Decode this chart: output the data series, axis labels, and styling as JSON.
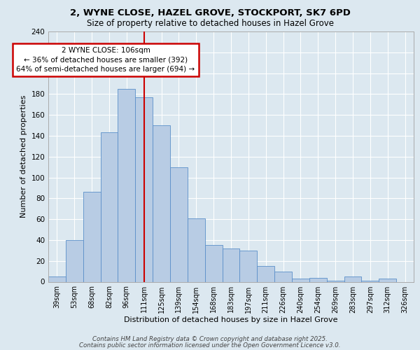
{
  "title_line1": "2, WYNE CLOSE, HAZEL GROVE, STOCKPORT, SK7 6PD",
  "title_line2": "Size of property relative to detached houses in Hazel Grove",
  "xlabel": "Distribution of detached houses by size in Hazel Grove",
  "ylabel": "Number of detached properties",
  "categories": [
    "39sqm",
    "53sqm",
    "68sqm",
    "82sqm",
    "96sqm",
    "111sqm",
    "125sqm",
    "139sqm",
    "154sqm",
    "168sqm",
    "183sqm",
    "197sqm",
    "211sqm",
    "226sqm",
    "240sqm",
    "254sqm",
    "269sqm",
    "283sqm",
    "297sqm",
    "312sqm",
    "326sqm"
  ],
  "values": [
    5,
    40,
    86,
    143,
    185,
    177,
    150,
    110,
    61,
    35,
    32,
    30,
    15,
    10,
    3,
    4,
    1,
    5,
    1,
    3,
    0
  ],
  "bar_color": "#b8cce4",
  "bar_edge_color": "#5b8fc9",
  "vline_x_index": 5,
  "vline_color": "#cc0000",
  "annotation_text": "2 WYNE CLOSE: 106sqm\n← 36% of detached houses are smaller (392)\n64% of semi-detached houses are larger (694) →",
  "annotation_box_color": "#ffffff",
  "annotation_box_edge_color": "#cc0000",
  "background_color": "#dce8f0",
  "plot_background_color": "#dce8f0",
  "grid_color": "#ffffff",
  "ylim": [
    0,
    240
  ],
  "yticks": [
    0,
    20,
    40,
    60,
    80,
    100,
    120,
    140,
    160,
    180,
    200,
    220,
    240
  ],
  "footer_line1": "Contains HM Land Registry data © Crown copyright and database right 2025.",
  "footer_line2": "Contains public sector information licensed under the Open Government Licence v3.0."
}
